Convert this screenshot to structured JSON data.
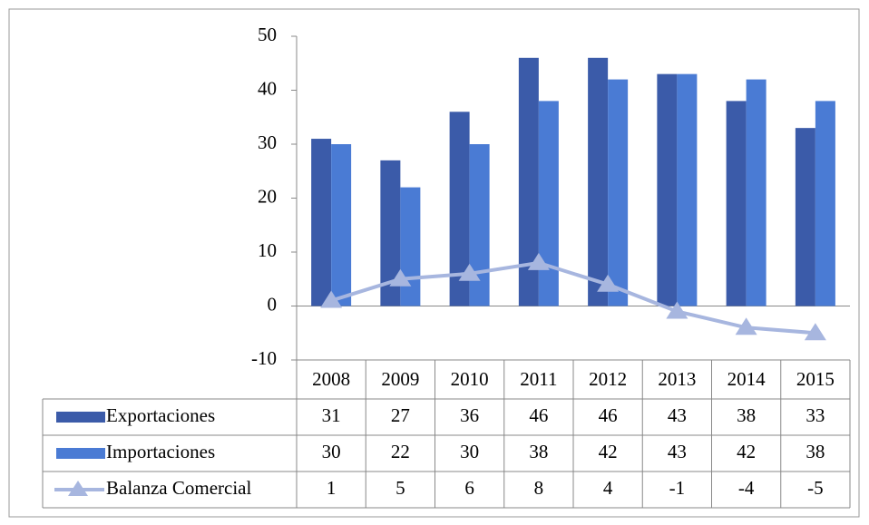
{
  "chart_data": {
    "type": "bar",
    "categories": [
      "2008",
      "2009",
      "2010",
      "2011",
      "2012",
      "2013",
      "2014",
      "2015"
    ],
    "series": [
      {
        "name": "Exportaciones",
        "type": "bar",
        "color": "#3b5ba9",
        "values": [
          31,
          27,
          36,
          46,
          46,
          43,
          38,
          33
        ]
      },
      {
        "name": "Importaciones",
        "type": "bar",
        "color": "#4a7bd4",
        "values": [
          30,
          22,
          30,
          38,
          42,
          43,
          42,
          38
        ]
      },
      {
        "name": "Balanza Comercial",
        "type": "line",
        "color": "#a7b6df",
        "values": [
          1,
          5,
          6,
          8,
          4,
          -1,
          -4,
          -5
        ]
      }
    ],
    "ylim": [
      -10,
      50
    ],
    "yticks": [
      -10,
      0,
      10,
      20,
      30,
      40,
      50
    ]
  }
}
